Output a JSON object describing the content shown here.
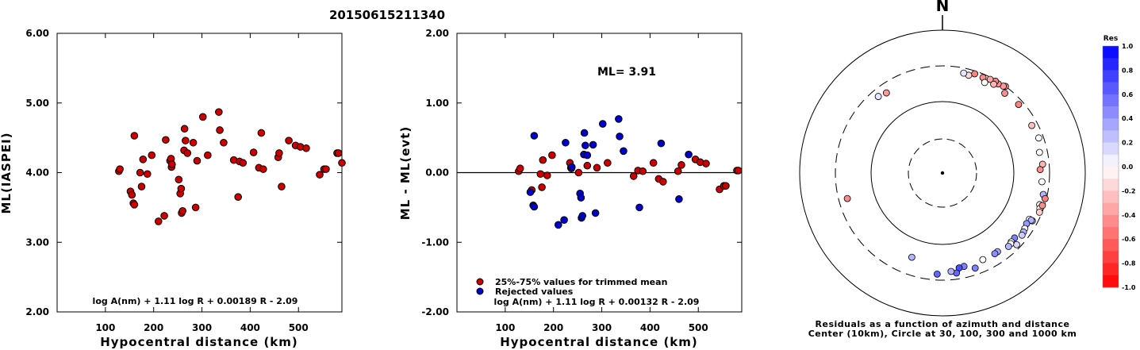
{
  "title": "20150615211340",
  "colors": {
    "red_point": "#cc0000",
    "blue_point": "#0000cc",
    "north_up": "#000000"
  },
  "chart_data": [
    {
      "type": "scatter",
      "panel": "ml-vs-distance",
      "xlabel": "Hypocentral distance (km)",
      "ylabel": "ML(IASPEI)",
      "xlim": [
        0,
        590
      ],
      "ylim": [
        2.0,
        6.0
      ],
      "xticks": [
        "100",
        "200",
        "300",
        "400",
        "500"
      ],
      "xtick_values": [
        100,
        200,
        300,
        400,
        500
      ],
      "yticks": [
        "2.00",
        "3.00",
        "4.00",
        "5.00",
        "6.00"
      ],
      "ytick_values": [
        2.0,
        3.0,
        4.0,
        5.0,
        6.0
      ],
      "formula": "log A(nm) + 1.11 log R + 0.00189 R - 2.09",
      "points": [
        [
          128,
          4.02
        ],
        [
          130,
          4.05
        ],
        [
          152,
          3.73
        ],
        [
          155,
          3.68
        ],
        [
          158,
          3.56
        ],
        [
          160,
          3.54
        ],
        [
          160,
          4.53
        ],
        [
          172,
          4.0
        ],
        [
          175,
          3.8
        ],
        [
          178,
          4.19
        ],
        [
          187,
          3.98
        ],
        [
          196,
          4.25
        ],
        [
          210,
          3.3
        ],
        [
          222,
          3.38
        ],
        [
          225,
          4.47
        ],
        [
          234,
          4.17
        ],
        [
          236,
          4.2
        ],
        [
          237,
          4.08
        ],
        [
          238,
          4.12
        ],
        [
          252,
          3.9
        ],
        [
          255,
          3.7
        ],
        [
          257,
          3.77
        ],
        [
          258,
          3.42
        ],
        [
          260,
          3.45
        ],
        [
          263,
          4.32
        ],
        [
          264,
          4.63
        ],
        [
          266,
          4.46
        ],
        [
          270,
          4.28
        ],
        [
          282,
          4.43
        ],
        [
          287,
          3.5
        ],
        [
          290,
          4.17
        ],
        [
          302,
          4.8
        ],
        [
          312,
          4.25
        ],
        [
          335,
          4.87
        ],
        [
          337,
          4.61
        ],
        [
          345,
          4.43
        ],
        [
          366,
          4.18
        ],
        [
          375,
          3.65
        ],
        [
          378,
          4.16
        ],
        [
          385,
          4.14
        ],
        [
          407,
          4.29
        ],
        [
          418,
          4.07
        ],
        [
          423,
          4.57
        ],
        [
          427,
          4.05
        ],
        [
          458,
          4.22
        ],
        [
          460,
          4.28
        ],
        [
          465,
          3.8
        ],
        [
          480,
          4.46
        ],
        [
          494,
          4.39
        ],
        [
          504,
          4.37
        ],
        [
          516,
          4.35
        ],
        [
          544,
          3.97
        ],
        [
          553,
          4.05
        ],
        [
          557,
          4.05
        ],
        [
          580,
          4.28
        ],
        [
          583,
          4.28
        ],
        [
          590,
          4.14
        ]
      ]
    },
    {
      "type": "scatter",
      "panel": "residual-vs-distance",
      "xlabel": "Hypocentral distance (km)",
      "ylabel": "ML - ML(evt)",
      "xlim": [
        0,
        590
      ],
      "ylim": [
        -2.0,
        2.0
      ],
      "xticks": [
        "100",
        "200",
        "300",
        "400",
        "500"
      ],
      "xtick_values": [
        100,
        200,
        300,
        400,
        500
      ],
      "yticks": [
        "-2.00",
        "-1.00",
        "0.00",
        "1.00",
        "2.00"
      ],
      "ytick_values": [
        -2.0,
        -1.0,
        0.0,
        1.0,
        2.0
      ],
      "ml_label": "ML= 3.91",
      "formula": "log A(nm) + 1.11 log R + 0.00132 R - 2.09",
      "legend": [
        "25%-75% values for trimmed mean",
        "Rejected values"
      ],
      "series": [
        {
          "name": "25%-75% values for trimmed mean",
          "color": "#cc0000",
          "points": [
            [
              128,
              0.02
            ],
            [
              131,
              0.06
            ],
            [
              155,
              -0.25
            ],
            [
              173,
              -0.02
            ],
            [
              176,
              -0.21
            ],
            [
              178,
              0.18
            ],
            [
              187,
              -0.04
            ],
            [
              197,
              0.25
            ],
            [
              234,
              0.14
            ],
            [
              236,
              0.07
            ],
            [
              237,
              0.06
            ],
            [
              252,
              0.0
            ],
            [
              270,
              0.1
            ],
            [
              290,
              0.07
            ],
            [
              312,
              0.14
            ],
            [
              366,
              -0.05
            ],
            [
              375,
              0.03
            ],
            [
              385,
              0.02
            ],
            [
              407,
              0.14
            ],
            [
              418,
              -0.09
            ],
            [
              427,
              -0.13
            ],
            [
              458,
              0.02
            ],
            [
              465,
              0.11
            ],
            [
              494,
              0.19
            ],
            [
              504,
              0.15
            ],
            [
              516,
              0.13
            ],
            [
              544,
              -0.24
            ],
            [
              553,
              -0.19
            ],
            [
              557,
              -0.19
            ],
            [
              580,
              0.03
            ],
            [
              583,
              0.03
            ]
          ]
        },
        {
          "name": "Rejected values",
          "color": "#0000cc",
          "points": [
            [
              152,
              -0.28
            ],
            [
              158,
              -0.47
            ],
            [
              160,
              -0.49
            ],
            [
              160,
              0.53
            ],
            [
              210,
              -0.75
            ],
            [
              222,
              -0.68
            ],
            [
              225,
              0.43
            ],
            [
              238,
              0.08
            ],
            [
              255,
              -0.3
            ],
            [
              257,
              -0.36
            ],
            [
              258,
              -0.65
            ],
            [
              260,
              -0.62
            ],
            [
              263,
              0.26
            ],
            [
              264,
              0.57
            ],
            [
              266,
              0.39
            ],
            [
              270,
              0.25
            ],
            [
              282,
              0.4
            ],
            [
              287,
              -0.58
            ],
            [
              302,
              0.7
            ],
            [
              335,
              0.77
            ],
            [
              337,
              0.52
            ],
            [
              345,
              0.31
            ],
            [
              378,
              -0.5
            ],
            [
              423,
              0.42
            ],
            [
              460,
              -0.38
            ],
            [
              480,
              0.26
            ]
          ]
        }
      ]
    },
    {
      "type": "scatter",
      "panel": "azimuth-distance-residuals",
      "north_label": "N",
      "caption_line1": "Residuals as a function of azimuth and distance",
      "caption_line2": "Center (10km), Circle at 30, 100, 300 and 1000 km",
      "colorbar_title": "Res",
      "colorbar_ticks": [
        "1.0",
        "0.8",
        "0.6",
        "0.4",
        "0.2",
        "0.0",
        "-0.2",
        "-0.4",
        "-0.6",
        "-0.8",
        "-1.0"
      ],
      "colorbar_values": [
        1.0,
        0.8,
        0.6,
        0.4,
        0.2,
        0.0,
        -0.2,
        -0.4,
        -0.6,
        -0.8,
        -1.0
      ],
      "rings_km": [
        30,
        100,
        300,
        1000
      ],
      "points_azimuth_distance_residual": [
        [
          36,
          300,
          -0.55
        ],
        [
          35,
          290,
          -0.4
        ],
        [
          32,
          282,
          -0.45
        ],
        [
          30,
          290,
          -0.5
        ],
        [
          27,
          282,
          -0.35
        ],
        [
          30,
          260,
          -0.3
        ],
        [
          23,
          270,
          -0.45
        ],
        [
          18,
          275,
          -0.5
        ],
        [
          15,
          250,
          -0.15
        ],
        [
          12,
          257,
          0.1
        ],
        [
          25,
          240,
          0.0
        ],
        [
          38,
          250,
          -0.45
        ],
        [
          48,
          260,
          -0.5
        ],
        [
          62,
          250,
          -0.25
        ],
        [
          70,
          260,
          0.0
        ],
        [
          78,
          235,
          0.0
        ],
        [
          85,
          245,
          -0.3
        ],
        [
          88,
          225,
          -0.45
        ],
        [
          95,
          240,
          0.0
        ],
        [
          102,
          265,
          0.3
        ],
        [
          108,
          258,
          -0.1
        ],
        [
          110,
          270,
          0.0
        ],
        [
          112,
          278,
          -0.2
        ],
        [
          108,
          282,
          -0.45
        ],
        [
          104,
          288,
          -0.5
        ],
        [
          118,
          255,
          0.2
        ],
        [
          118,
          230,
          0.0
        ],
        [
          118,
          245,
          0.3
        ],
        [
          121,
          228,
          0.4
        ],
        [
          124,
          236,
          0.0
        ],
        [
          126,
          242,
          0.3
        ],
        [
          128,
          248,
          0.2
        ],
        [
          134,
          265,
          0.15
        ],
        [
          132,
          220,
          0.5
        ],
        [
          135,
          222,
          0.0
        ],
        [
          136,
          228,
          0.0
        ],
        [
          138,
          232,
          0.3
        ],
        [
          145,
          213,
          0.35
        ],
        [
          147,
          214,
          0.45
        ],
        [
          155,
          210,
          0.0
        ],
        [
          161,
          245,
          0.5
        ],
        [
          167,
          212,
          0.5
        ],
        [
          170,
          215,
          0.7
        ],
        [
          172,
          248,
          0.6
        ],
        [
          175,
          232,
          0.3
        ],
        [
          183,
          250,
          0.6
        ],
        [
          200,
          175,
          0.3
        ],
        [
          320,
          240,
          0.1
        ],
        [
          325,
          225,
          -0.4
        ],
        [
          255,
          230,
          -0.45
        ]
      ]
    }
  ]
}
